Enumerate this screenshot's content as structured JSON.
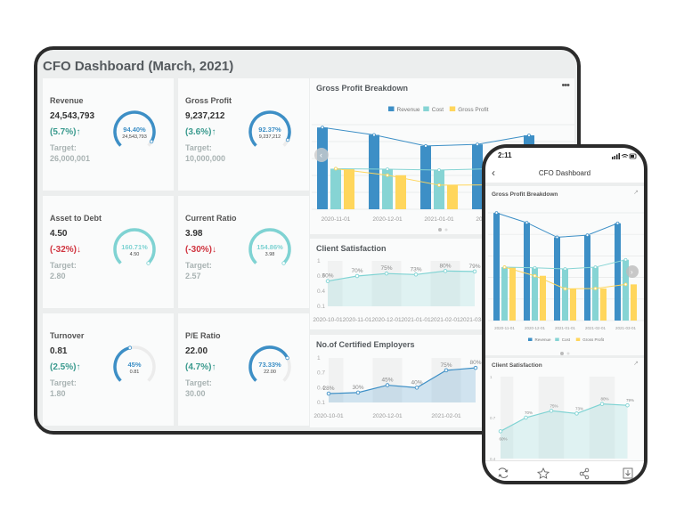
{
  "tablet": {
    "title": "CFO Dashboard (March, 2021)",
    "kpis": [
      {
        "title": "Revenue",
        "value": "24,543,793",
        "change": "(5.7%)↑",
        "direction": "up",
        "target_label": "Target:",
        "target": "26,000,001",
        "gauge_pct": "94.40%",
        "gauge_sub": "24,543,793",
        "fill": 0.944,
        "color": "#3d8fc6"
      },
      {
        "title": "Gross Profit",
        "value": "9,237,212",
        "change": "(3.6%)↑",
        "direction": "up",
        "target_label": "Target:",
        "target": "10,000,000",
        "gauge_pct": "92.37%",
        "gauge_sub": "9,237,212",
        "fill": 0.9237,
        "color": "#3d8fc6"
      },
      {
        "title": "Asset to Debt",
        "value": "4.50",
        "change": "(-32%)↓",
        "direction": "down",
        "target_label": "Target:",
        "target": "2.80",
        "gauge_pct": "160.71%",
        "gauge_sub": "4.50",
        "fill": 1,
        "color": "#7fd3d3"
      },
      {
        "title": "Current Ratio",
        "value": "3.98",
        "change": "(-30%)↓",
        "direction": "down",
        "target_label": "Target:",
        "target": "2.57",
        "gauge_pct": "154.86%",
        "gauge_sub": "3.98",
        "fill": 1,
        "color": "#7fd3d3"
      },
      {
        "title": "Turnover",
        "value": "0.81",
        "change": "(2.5%)↑",
        "direction": "up",
        "target_label": "Target:",
        "target": "1.80",
        "gauge_pct": "45%",
        "gauge_sub": "0.81",
        "fill": 0.45,
        "color": "#3d8fc6"
      },
      {
        "title": "P/E Ratio",
        "value": "22.00",
        "change": "(4.7%)↑",
        "direction": "up",
        "target_label": "Target:",
        "target": "30.00",
        "gauge_pct": "73.33%",
        "gauge_sub": "22.00",
        "fill": 0.7333,
        "color": "#3d8fc6"
      }
    ],
    "more_label": "•••"
  },
  "phone": {
    "time": "2:11",
    "title": "CFO Dashboard",
    "back_icon": "chevron-left-icon",
    "toolbar": [
      "refresh-icon",
      "star-icon",
      "share-icon",
      "download-icon"
    ]
  },
  "colors": {
    "revenue": "#3d8fc6",
    "cost": "#86d4d4",
    "gross_profit": "#ffd65c",
    "satisfaction": "#7fd3d3",
    "employers": "#3d8fc6"
  },
  "chart_data": [
    {
      "type": "bar",
      "title": "Gross Profit Breakdown",
      "categories": [
        "2020-11-01",
        "2020-12-01",
        "2021-01-01",
        "2021-02-01",
        "2021-03-01"
      ],
      "series": [
        {
          "name": "Revenue",
          "values": [
            36.3,
            33.0,
            28.1,
            28.8,
            32.8
          ]
        },
        {
          "name": "Cost",
          "values": [
            18.0,
            17.8,
            17.4,
            18.0,
            20.5
          ]
        },
        {
          "name": "Gross Profit",
          "values": [
            18.0,
            15.1,
            10.7,
            10.8,
            12.2
          ]
        }
      ],
      "legend": "top",
      "grid": true
    },
    {
      "type": "area",
      "title": "Client Satisfaction",
      "categories": [
        "2020-10-01",
        "2020-11-01",
        "2020-12-01",
        "2021-01-01",
        "2021-02-01",
        "2021-03-01"
      ],
      "values": [
        0.6,
        0.7,
        0.75,
        0.73,
        0.8,
        0.79
      ],
      "labels": [
        "60%",
        "70%",
        "75%",
        "73%",
        "80%",
        "79%"
      ],
      "yticks": [
        "0.1",
        "0.4",
        "0.7",
        "1"
      ],
      "ylim": [
        0.1,
        1
      ]
    },
    {
      "type": "area",
      "title": "No.of Certified Employers",
      "categories": [
        "2020-10-01",
        "2020-11-01",
        "2020-12-01",
        "2021-01-01",
        "2021-02-01",
        "2021-03-01"
      ],
      "xtick_labels": [
        "2020-10-01",
        "2020-12-01",
        "2021-02-01"
      ],
      "values": [
        0.28,
        0.3,
        0.45,
        0.4,
        0.75,
        0.8
      ],
      "labels": [
        "28%",
        "30%",
        "45%",
        "40%",
        "75%",
        "80%"
      ],
      "yticks": [
        "0.1",
        "0.4",
        "0.7",
        "1"
      ],
      "ylim": [
        0.1,
        1
      ]
    }
  ]
}
